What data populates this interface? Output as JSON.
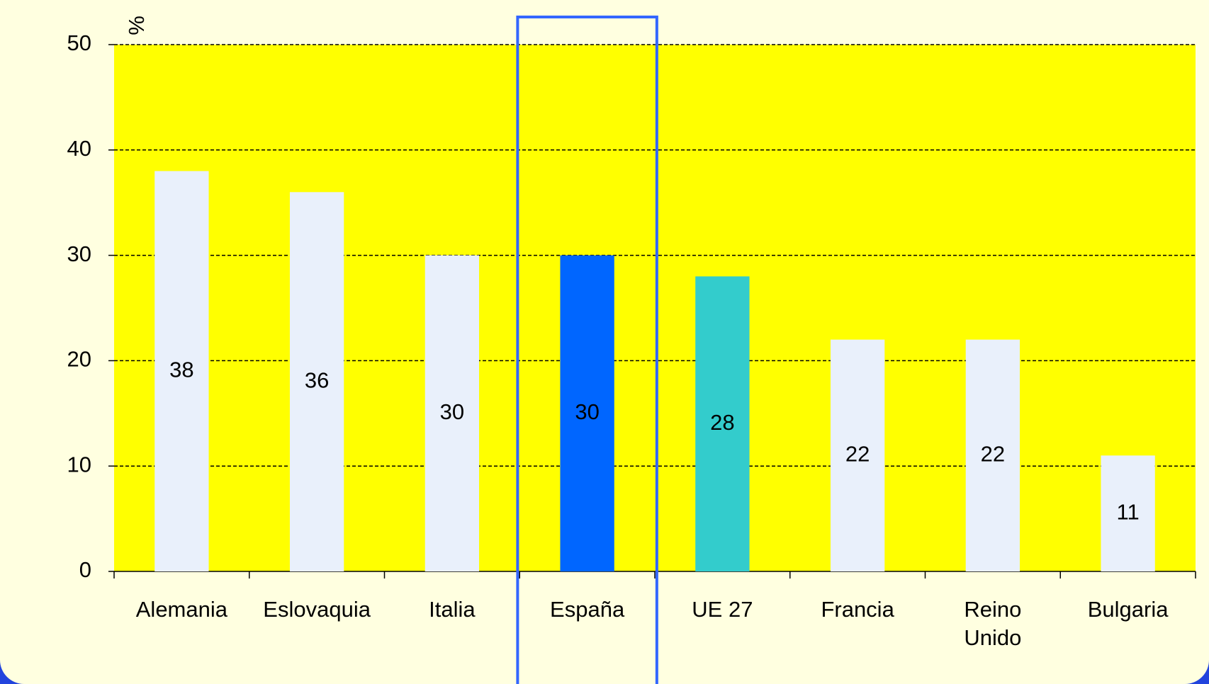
{
  "chart_data": {
    "type": "bar",
    "y_label": "%",
    "categories": [
      "Alemania",
      "Eslovaquia",
      "Italia",
      "España",
      "UE 27",
      "Francia",
      "Reino\nUnido",
      "Bulgaria"
    ],
    "values": [
      38,
      36,
      30,
      30,
      28,
      22,
      22,
      11
    ],
    "colors": [
      "#e9f0fb",
      "#e9f0fb",
      "#e9f0fb",
      "#0066ff",
      "#33cccc",
      "#e9f0fb",
      "#e9f0fb",
      "#e9f0fb"
    ],
    "highlight": "España",
    "ylim": [
      0,
      50
    ],
    "yticks": [
      0,
      10,
      20,
      30,
      40,
      50
    ],
    "grid": true
  }
}
